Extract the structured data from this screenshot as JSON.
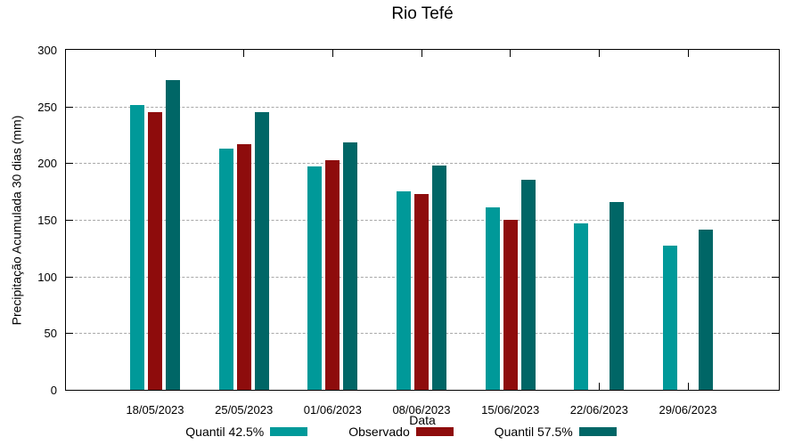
{
  "title": "Rio Tefé",
  "axes": {
    "y_label": "Precipitação Acumulada 30 dias (mm)",
    "x_label": "Data",
    "y_ticks": [
      0,
      50,
      100,
      150,
      200,
      250,
      300
    ],
    "y_min": 0,
    "y_max": 300,
    "grid": "horizontal dashed at major y ticks"
  },
  "chart_data": {
    "type": "bar",
    "title": "Rio Tefé",
    "xlabel": "Data",
    "ylabel": "Precipitação Acumulada 30 dias (mm)",
    "ylim": [
      0,
      300
    ],
    "y_ticks": [
      0,
      50,
      100,
      150,
      200,
      250,
      300
    ],
    "categories": [
      "18/05/2023",
      "25/05/2023",
      "01/06/2023",
      "08/06/2023",
      "15/06/2023",
      "22/06/2023",
      "29/06/2023"
    ],
    "series": [
      {
        "name": "Quantil 42.5%",
        "color": "#009999",
        "values": [
          251,
          213,
          197,
          175,
          161,
          147,
          127
        ]
      },
      {
        "name": "Observado",
        "color": "#8E0C0C",
        "values": [
          245,
          217,
          203,
          173,
          150,
          null,
          null
        ]
      },
      {
        "name": "Quantil 57.5%",
        "color": "#006666",
        "values": [
          273,
          245,
          218,
          198,
          185,
          166,
          141
        ]
      }
    ],
    "grid": true,
    "legend_position": "bottom"
  },
  "legend": [
    {
      "label": "Quantil 42.5%",
      "color": "#009999"
    },
    {
      "label": "Observado",
      "color": "#8E0C0C"
    },
    {
      "label": "Quantil 57.5%",
      "color": "#006666"
    }
  ],
  "colors": {
    "quantil_low": "#009999",
    "observado": "#8E0C0C",
    "quantil_high": "#006666",
    "gridline": "#a8a8a8",
    "axis": "#000000"
  }
}
